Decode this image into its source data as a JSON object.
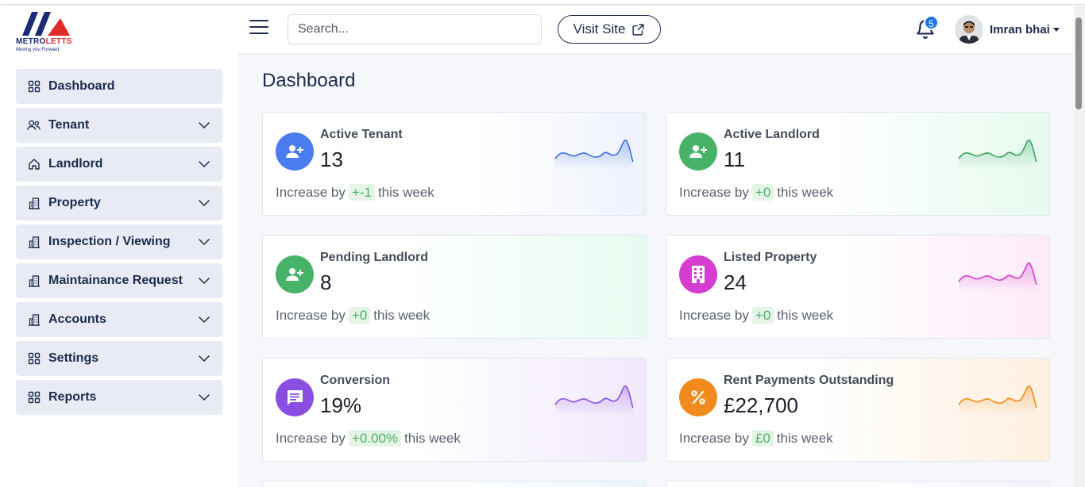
{
  "brand": {
    "name_part1": "METRO",
    "name_part2": "LETTS",
    "tagline": "Moving you Forward",
    "colors": {
      "navy": "#1c2a78",
      "red": "#e02a2a"
    }
  },
  "header": {
    "search_placeholder": "Search...",
    "search_value": "",
    "visit_site_label": "Visit Site",
    "notification_count": "5",
    "user_name": "Imran bhai"
  },
  "sidebar": {
    "items": [
      {
        "label": "Dashboard",
        "icon": "grid-icon",
        "has_chevron": false
      },
      {
        "label": "Tenant",
        "icon": "users-icon",
        "has_chevron": true
      },
      {
        "label": "Landlord",
        "icon": "home-icon",
        "has_chevron": true
      },
      {
        "label": "Property",
        "icon": "building-icon",
        "has_chevron": true
      },
      {
        "label": "Inspection / Viewing",
        "icon": "building-icon",
        "has_chevron": true
      },
      {
        "label": "Maintainance Request",
        "icon": "building-icon",
        "has_chevron": true
      },
      {
        "label": "Accounts",
        "icon": "building-icon",
        "has_chevron": true
      },
      {
        "label": "Settings",
        "icon": "grid-icon",
        "has_chevron": true
      },
      {
        "label": "Reports",
        "icon": "grid-icon",
        "has_chevron": true
      }
    ]
  },
  "main": {
    "title": "Dashboard",
    "cards": [
      {
        "label": "Active Tenant",
        "value": "13",
        "foot_prefix": "Increase by",
        "delta": "+-1",
        "foot_suffix": "this week",
        "icon": "user-plus-icon",
        "icon_color": "#4a7cf0",
        "spark_color": "#3d6fe0",
        "has_spark": true
      },
      {
        "label": "Active Landlord",
        "value": "11",
        "foot_prefix": "Increase by",
        "delta": "+0",
        "foot_suffix": "this week",
        "icon": "user-plus-icon",
        "icon_color": "#46b369",
        "spark_color": "#3aa45d",
        "has_spark": true
      },
      {
        "label": "Pending Landlord",
        "value": "8",
        "foot_prefix": "Increase by",
        "delta": "+0",
        "foot_suffix": "this week",
        "icon": "user-plus-icon",
        "icon_color": "#46b369",
        "spark_color": "#3aa45d",
        "has_spark": false
      },
      {
        "label": "Listed Property",
        "value": "24",
        "foot_prefix": "Increase by",
        "delta": "+0",
        "foot_suffix": "this week",
        "icon": "building-icon",
        "icon_color": "#d63ccf",
        "spark_color": "#d63ccf",
        "has_spark": true
      },
      {
        "label": "Conversion",
        "value": "19%",
        "foot_prefix": "Increase by",
        "delta": "+0.00%",
        "foot_suffix": "this week",
        "icon": "chat-icon",
        "icon_color": "#8a4fe0",
        "spark_color": "#8a4fe0",
        "has_spark": true
      },
      {
        "label": "Rent Payments Outstanding",
        "value": "£22,700",
        "foot_prefix": "Increase by",
        "delta": "£0",
        "foot_suffix": "this week",
        "icon": "percent-icon",
        "icon_color": "#f08a1c",
        "spark_color": "#f08a1c",
        "has_spark": true
      }
    ]
  }
}
